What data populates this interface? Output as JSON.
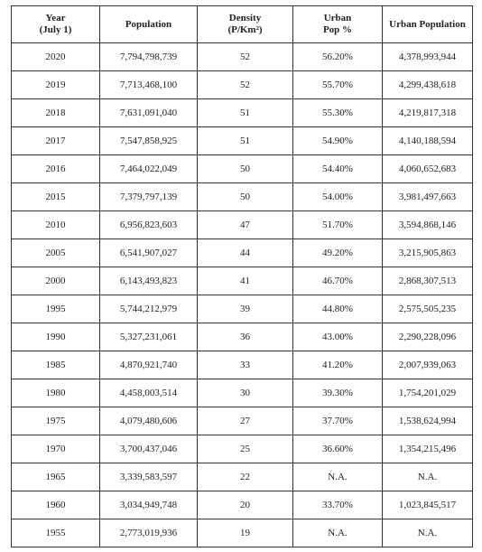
{
  "table": {
    "headers": [
      {
        "line1": "Year",
        "line2": "(July 1)"
      },
      {
        "line1": "Population",
        "line2": ""
      },
      {
        "line1": "Density",
        "line2": "(P/Km²)"
      },
      {
        "line1": "Urban",
        "line2": "Pop %"
      },
      {
        "line1": "Urban Population",
        "line2": ""
      }
    ],
    "rows": [
      [
        "2020",
        "7,794,798,739",
        "52",
        "56.20%",
        "4,378,993,944"
      ],
      [
        "2019",
        "7,713,468,100",
        "52",
        "55.70%",
        "4,299,438,618"
      ],
      [
        "2018",
        "7,631,091,040",
        "51",
        "55.30%",
        "4,219,817,318"
      ],
      [
        "2017",
        "7,547,858,925",
        "51",
        "54.90%",
        "4,140,188,594"
      ],
      [
        "2016",
        "7,464,022,049",
        "50",
        "54.40%",
        "4,060,652,683"
      ],
      [
        "2015",
        "7,379,797,139",
        "50",
        "54.00%",
        "3,981,497,663"
      ],
      [
        "2010",
        "6,956,823,603",
        "47",
        "51.70%",
        "3,594,868,146"
      ],
      [
        "2005",
        "6,541,907,027",
        "44",
        "49.20%",
        "3,215,905,863"
      ],
      [
        "2000",
        "6,143,493,823",
        "41",
        "46.70%",
        "2,868,307,513"
      ],
      [
        "1995",
        "5,744,212,979",
        "39",
        "44.80%",
        "2,575,505,235"
      ],
      [
        "1990",
        "5,327,231,061",
        "36",
        "43.00%",
        "2,290,228,096"
      ],
      [
        "1985",
        "4,870,921,740",
        "33",
        "41.20%",
        "2,007,939,063"
      ],
      [
        "1980",
        "4,458,003,514",
        "30",
        "39.30%",
        "1,754,201,029"
      ],
      [
        "1975",
        "4,079,480,606",
        "27",
        "37.70%",
        "1,538,624,994"
      ],
      [
        "1970",
        "3,700,437,046",
        "25",
        "36.60%",
        "1,354,215,496"
      ],
      [
        "1965",
        "3,339,583,597",
        "22",
        "N.A.",
        "N.A."
      ],
      [
        "1960",
        "3,034,949,748",
        "20",
        "33.70%",
        "1,023,845,517"
      ],
      [
        "1955",
        "2,773,019,936",
        "19",
        "N.A.",
        "N.A."
      ]
    ]
  }
}
